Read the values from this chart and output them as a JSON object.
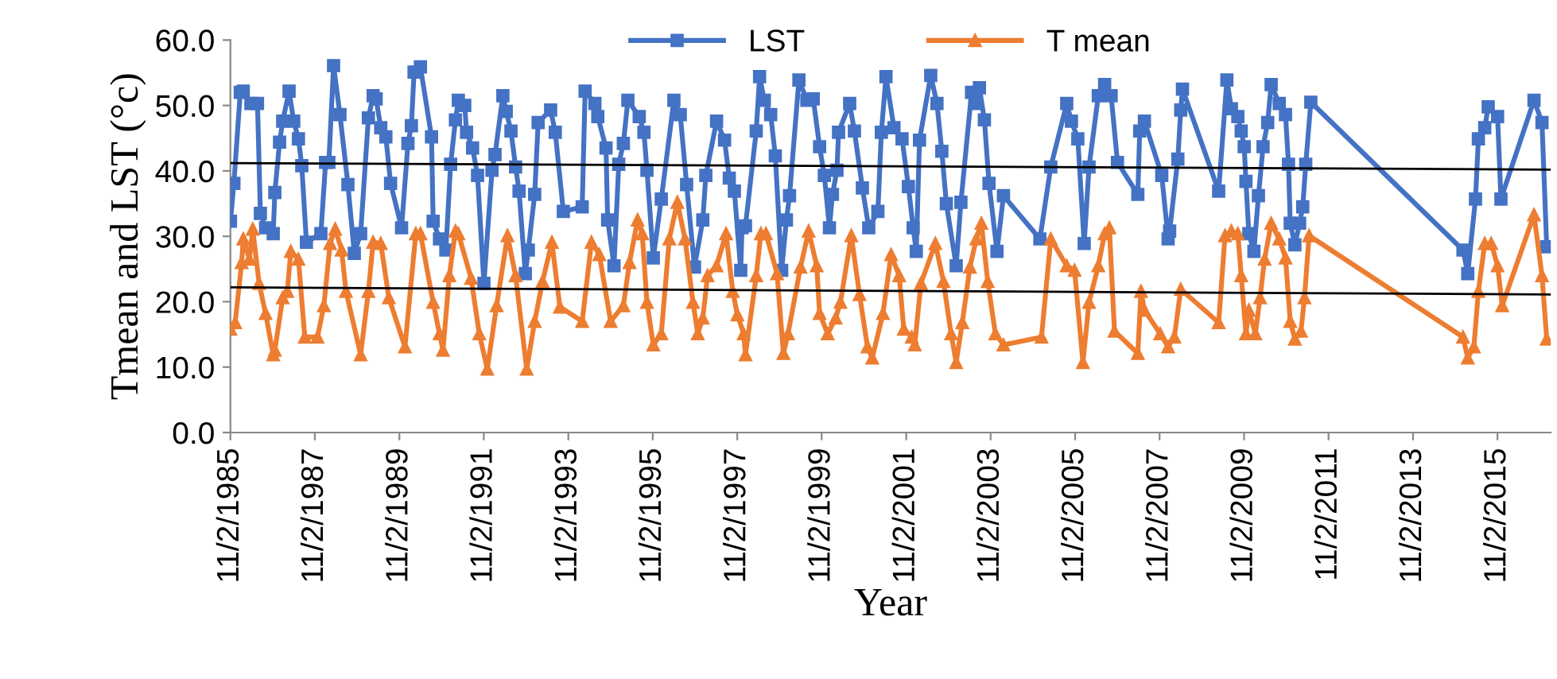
{
  "chart_data": {
    "type": "line",
    "xlabel": "Year",
    "ylabel": "Tmean and LST (°c)",
    "xlim": [
      "1985-11-02",
      "2017-02-05"
    ],
    "xticks": [
      {
        "value": "1985-11-02",
        "label": "11/2/1985"
      },
      {
        "value": "1987-11-02",
        "label": "11/2/1987"
      },
      {
        "value": "1989-11-02",
        "label": "11/2/1989"
      },
      {
        "value": "1991-11-02",
        "label": "11/2/1991"
      },
      {
        "value": "1993-11-02",
        "label": "11/2/1993"
      },
      {
        "value": "1995-11-02",
        "label": "11/2/1995"
      },
      {
        "value": "1997-11-02",
        "label": "11/2/1997"
      },
      {
        "value": "1999-11-02",
        "label": "11/2/1999"
      },
      {
        "value": "2001-11-02",
        "label": "11/2/2001"
      },
      {
        "value": "2003-11-02",
        "label": "11/2/2003"
      },
      {
        "value": "2005-11-02",
        "label": "11/2/2005"
      },
      {
        "value": "2007-11-02",
        "label": "11/2/2007"
      },
      {
        "value": "2009-11-02",
        "label": "11/2/2009"
      },
      {
        "value": "2011-11-02",
        "label": "11/2/2011"
      },
      {
        "value": "2013-11-02",
        "label": "11/2/2013"
      },
      {
        "value": "2015-11-02",
        "label": "11/2/2015"
      }
    ],
    "ylim": [
      0,
      60
    ],
    "yticks": [
      {
        "value": 0,
        "label": "0.0"
      },
      {
        "value": 10,
        "label": "10.0"
      },
      {
        "value": 20,
        "label": "20.0"
      },
      {
        "value": 30,
        "label": "30.0"
      },
      {
        "value": 40,
        "label": "40.0"
      },
      {
        "value": 50,
        "label": "50.0"
      },
      {
        "value": 60,
        "label": "60.0"
      }
    ],
    "grid": false,
    "legend": "top",
    "series": [
      {
        "name": "LST",
        "color": "#4472c4",
        "marker": "square",
        "x": [
          "1985-11-02",
          "1985-12-02",
          "1986-01-26",
          "1986-02-21",
          "1986-04-28",
          "1986-06-24",
          "1986-07-19",
          "1986-09-02",
          "1986-11-07",
          "1986-11-21",
          "1987-01-01",
          "1987-01-28",
          "1987-03-24",
          "1987-05-03",
          "1987-06-13",
          "1987-07-12",
          "1987-08-21",
          "1987-12-24",
          "1988-02-03",
          "1988-03-02",
          "1988-04-12",
          "1988-06-06",
          "1988-08-14",
          "1988-10-08",
          "1988-12-02",
          "1989-02-07",
          "1989-03-20",
          "1989-04-15",
          "1989-05-25",
          "1989-07-08",
          "1989-08-18",
          "1989-11-21",
          "1990-01-15",
          "1990-02-14",
          "1990-03-09",
          "1990-05-03",
          "1990-08-07",
          "1990-08-21",
          "1990-10-15",
          "1990-12-09",
          "1991-01-19",
          "1991-03-02",
          "1991-03-27",
          "1991-05-21",
          "1991-06-06",
          "1991-07-28",
          "1991-09-09",
          "1991-11-03",
          "1992-01-12",
          "1992-02-07",
          "1992-04-15",
          "1992-05-14",
          "1992-06-24",
          "1992-08-03",
          "1992-09-02",
          "1992-10-26",
          "1992-11-21",
          "1993-01-15",
          "1993-02-14",
          "1993-06-02",
          "1993-07-12",
          "1993-09-20",
          "1994-03-02",
          "1994-03-27",
          "1994-06-20",
          "1994-07-15",
          "1994-09-24",
          "1994-10-08",
          "1994-12-02",
          "1995-01-12",
          "1995-02-21",
          "1995-04-01",
          "1995-07-08",
          "1995-08-18",
          "1995-09-13",
          "1995-11-07",
          "1996-01-15",
          "1996-05-03",
          "1996-06-27",
          "1996-08-21",
          "1996-10-28",
          "1997-01-08",
          "1997-02-03",
          "1997-05-07",
          "1997-07-15",
          "1997-08-25",
          "1997-10-08",
          "1997-12-02",
          "1997-12-13",
          "1998-01-12",
          "1998-04-15",
          "1998-05-14",
          "1998-06-24",
          "1998-08-18",
          "1998-09-27",
          "1998-11-21",
          "1999-01-01",
          "1999-01-28",
          "1999-04-19",
          "1999-06-27",
          "1999-08-21",
          "1999-10-15",
          "1999-11-25",
          "2000-01-08",
          "2000-02-03",
          "2000-03-13",
          "2000-03-27",
          "2000-07-01",
          "2000-08-11",
          "2000-10-19",
          "2000-12-13",
          "2001-03-02",
          "2001-04-01",
          "2001-05-11",
          "2001-07-19",
          "2001-09-27",
          "2001-11-21",
          "2002-01-01",
          "2002-01-28",
          "2002-02-25",
          "2002-06-02",
          "2002-07-26",
          "2002-09-06",
          "2002-10-15",
          "2003-01-08",
          "2003-02-18",
          "2003-05-21",
          "2003-06-20",
          "2003-07-28",
          "2003-09-09",
          "2003-10-19",
          "2003-12-27",
          "2004-02-21",
          "2005-01-01",
          "2005-04-05",
          "2005-08-21",
          "2005-10-01",
          "2005-11-25",
          "2006-01-19",
          "2006-03-02",
          "2006-05-21",
          "2006-07-15",
          "2006-09-09",
          "2006-11-03",
          "2007-04-28",
          "2007-05-14",
          "2007-06-24",
          "2007-11-21",
          "2008-01-15",
          "2008-01-28",
          "2008-04-08",
          "2008-05-03",
          "2008-05-18",
          "2009-03-27",
          "2009-06-06",
          "2009-07-15",
          "2009-09-09",
          "2009-10-08",
          "2009-11-03",
          "2009-11-18",
          "2009-12-13",
          "2010-01-26",
          "2010-03-06",
          "2010-04-15",
          "2010-05-25",
          "2010-06-24",
          "2010-09-02",
          "2010-10-26",
          "2010-11-21",
          "2010-12-06",
          "2011-01-15",
          "2011-02-25",
          "2011-03-24",
          "2011-04-19",
          "2011-06-02",
          "2015-01-08",
          "2015-02-18",
          "2015-04-26",
          "2015-05-21",
          "2015-07-15",
          "2015-08-14",
          "2015-11-03",
          "2015-12-02",
          "2016-09-13",
          "2016-11-21",
          "2017-01-01"
        ],
        "values": [
          32.3,
          38.1,
          52.0,
          52.2,
          50.3,
          50.3,
          33.5,
          31.3,
          30.4,
          36.7,
          44.4,
          47.6,
          52.2,
          47.6,
          44.9,
          40.8,
          29.1,
          30.4,
          41.3,
          41.3,
          56.1,
          48.6,
          37.9,
          27.4,
          30.4,
          48.1,
          51.5,
          51.0,
          46.6,
          45.2,
          38.1,
          31.3,
          44.2,
          46.9,
          55.1,
          55.9,
          45.2,
          32.3,
          29.6,
          27.9,
          41.0,
          47.8,
          50.8,
          50.0,
          45.9,
          43.5,
          39.3,
          22.8,
          40.1,
          42.5,
          51.5,
          49.1,
          46.1,
          40.6,
          36.9,
          24.3,
          27.9,
          36.4,
          47.4,
          49.3,
          45.9,
          33.8,
          34.5,
          52.2,
          50.3,
          48.3,
          43.5,
          32.5,
          25.5,
          41.0,
          44.2,
          50.8,
          48.3,
          45.9,
          40.1,
          26.7,
          35.7,
          50.8,
          48.6,
          37.9,
          25.3,
          32.5,
          39.3,
          47.6,
          44.7,
          38.9,
          36.9,
          24.8,
          31.3,
          31.6,
          46.1,
          54.4,
          50.8,
          48.6,
          42.3,
          24.8,
          32.5,
          36.2,
          53.9,
          50.8,
          51.0,
          43.7,
          39.3,
          31.3,
          36.4,
          40.1,
          45.9,
          50.3,
          46.1,
          37.4,
          31.3,
          33.8,
          45.9,
          54.4,
          46.6,
          44.9,
          37.6,
          31.3,
          27.7,
          44.7,
          54.6,
          50.3,
          43.0,
          35.0,
          25.5,
          35.2,
          52.0,
          50.3,
          52.7,
          47.8,
          38.1,
          27.7,
          36.2,
          29.6,
          40.6,
          50.3,
          47.6,
          44.9,
          28.9,
          40.6,
          51.5,
          53.2,
          51.5,
          41.3,
          36.4,
          46.1,
          47.6,
          39.3,
          29.6,
          30.8,
          41.8,
          49.3,
          52.5,
          36.9,
          53.9,
          49.5,
          48.3,
          46.1,
          43.7,
          38.4,
          30.4,
          27.7,
          36.2,
          43.7,
          47.4,
          53.2,
          50.3,
          48.6,
          41.0,
          32.0,
          28.7,
          32.0,
          34.5,
          41.0,
          50.5,
          27.9,
          24.3,
          35.7,
          44.9,
          46.6,
          49.8,
          48.3,
          35.7,
          50.8,
          47.4,
          28.4
        ]
      },
      {
        "name": "T mean",
        "color": "#ed7d31",
        "marker": "triangle",
        "x": [
          "1985-11-02",
          "1985-12-13",
          "1986-02-07",
          "1986-02-21",
          "1986-04-15",
          "1986-05-14",
          "1986-07-08",
          "1986-09-02",
          "1986-11-07",
          "1986-11-21",
          "1987-01-28",
          "1987-03-09",
          "1987-04-08",
          "1987-06-13",
          "1987-08-07",
          "1987-11-25",
          "1988-01-19",
          "1988-03-13",
          "1988-04-26",
          "1988-06-20",
          "1988-07-28",
          "1988-12-02",
          "1989-02-07",
          "1989-03-20",
          "1989-05-25",
          "1989-08-03",
          "1989-12-20",
          "1990-03-24",
          "1990-05-03",
          "1990-08-21",
          "1990-10-15",
          "1990-11-14",
          "1991-01-08",
          "1991-03-02",
          "1991-03-27",
          "1991-07-15",
          "1991-09-24",
          "1991-12-02",
          "1992-02-21",
          "1992-05-25",
          "1992-08-03",
          "1992-11-07",
          "1993-01-15",
          "1993-03-24",
          "1993-06-13",
          "1993-08-21",
          "1994-03-02",
          "1994-05-21",
          "1994-07-28",
          "1994-11-03",
          "1995-02-21",
          "1995-04-15",
          "1995-06-24",
          "1995-08-03",
          "1995-09-13",
          "1995-11-07",
          "1996-01-15",
          "1996-03-24",
          "1996-06-02",
          "1996-08-07",
          "1996-10-15",
          "1996-11-25",
          "1997-01-08",
          "1997-02-18",
          "1997-05-07",
          "1997-07-28",
          "1997-09-24",
          "1997-11-03",
          "1997-12-27",
          "1998-01-12",
          "1998-04-15",
          "1998-05-25",
          "1998-07-08",
          "1998-10-12",
          "1998-12-06",
          "1999-01-15",
          "1999-05-03",
          "1999-07-12",
          "1999-09-20",
          "1999-10-15",
          "1999-12-24",
          "2000-03-02",
          "2000-04-12",
          "2000-07-15",
          "2000-09-24",
          "2000-12-02",
          "2001-01-12",
          "2001-04-15",
          "2001-06-24",
          "2001-09-02",
          "2001-10-12",
          "2001-12-20",
          "2002-01-15",
          "2002-03-09",
          "2002-07-12",
          "2002-09-20",
          "2002-11-25",
          "2003-01-08",
          "2003-03-02",
          "2003-05-07",
          "2003-07-01",
          "2003-08-14",
          "2003-10-08",
          "2003-12-13",
          "2004-02-21",
          "2005-01-15",
          "2005-04-05",
          "2005-08-21",
          "2005-10-28",
          "2006-01-08",
          "2006-03-02",
          "2006-05-21",
          "2006-07-15",
          "2006-08-25",
          "2006-10-08",
          "2007-04-28",
          "2007-05-25",
          "2007-06-24",
          "2007-11-07",
          "2008-01-15",
          "2008-03-09",
          "2008-05-03",
          "2009-03-27",
          "2009-05-21",
          "2009-07-15",
          "2009-09-09",
          "2009-10-08",
          "2009-11-18",
          "2009-12-13",
          "2010-02-07",
          "2010-03-20",
          "2010-04-28",
          "2010-06-24",
          "2010-09-02",
          "2010-10-26",
          "2010-12-06",
          "2011-01-15",
          "2011-03-09",
          "2011-04-08",
          "2011-05-18",
          "2015-01-08",
          "2015-02-18",
          "2015-04-12",
          "2015-05-21",
          "2015-07-15",
          "2015-09-09",
          "2015-11-03",
          "2015-12-13",
          "2016-09-13",
          "2016-11-21",
          "2017-01-01"
        ],
        "values": [
          15.8,
          16.8,
          26.0,
          29.6,
          26.5,
          31.1,
          22.8,
          18.2,
          11.9,
          12.6,
          20.6,
          21.6,
          27.7,
          26.5,
          14.6,
          14.6,
          19.4,
          28.9,
          31.1,
          27.9,
          21.6,
          11.9,
          21.6,
          29.1,
          28.9,
          20.6,
          13.1,
          30.4,
          30.4,
          19.9,
          15.1,
          12.6,
          24.0,
          30.8,
          30.4,
          23.6,
          15.1,
          9.7,
          19.4,
          30.1,
          24.0,
          9.7,
          17.0,
          23.1,
          29.1,
          19.2,
          17.0,
          29.1,
          27.2,
          17.0,
          19.4,
          26.0,
          32.5,
          30.4,
          19.9,
          13.4,
          15.1,
          29.6,
          35.2,
          29.6,
          19.9,
          15.1,
          17.5,
          24.0,
          25.5,
          30.4,
          21.6,
          18.0,
          15.1,
          11.9,
          24.0,
          30.4,
          30.4,
          24.3,
          12.1,
          15.1,
          25.3,
          30.8,
          25.5,
          18.2,
          15.1,
          17.5,
          19.9,
          30.1,
          21.1,
          13.1,
          11.4,
          18.2,
          27.2,
          24.0,
          15.8,
          14.6,
          13.4,
          22.8,
          28.9,
          23.1,
          15.1,
          10.7,
          16.8,
          25.3,
          29.6,
          32.0,
          23.1,
          15.1,
          13.4,
          14.6,
          29.6,
          25.5,
          24.8,
          10.7,
          19.9,
          25.5,
          30.4,
          31.3,
          15.5,
          12.1,
          21.6,
          18.7,
          15.1,
          13.1,
          14.6,
          21.9,
          16.8,
          30.1,
          30.8,
          30.4,
          24.0,
          15.1,
          18.7,
          15.1,
          20.6,
          26.5,
          32.0,
          29.6,
          26.7,
          17.0,
          14.3,
          15.5,
          20.6,
          30.1,
          14.6,
          11.4,
          13.1,
          21.6,
          28.9,
          28.9,
          25.5,
          19.4,
          33.3,
          24.0,
          14.3
        ]
      },
      {
        "color": "#000000",
        "marker": "none",
        "x": [
          "1985-11-02",
          "2017-02-05"
        ],
        "values": [
          41.2,
          40.2
        ]
      },
      {
        "color": "#000000",
        "marker": "none",
        "x": [
          "1985-11-02",
          "2017-02-05"
        ],
        "values": [
          22.2,
          21.1
        ]
      }
    ]
  }
}
